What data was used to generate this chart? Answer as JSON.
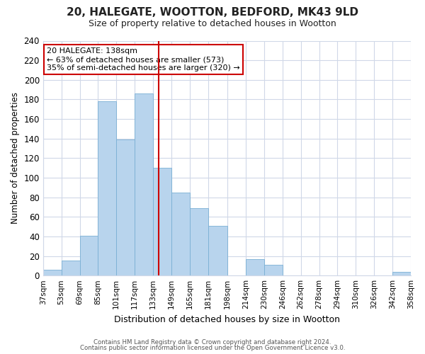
{
  "title": "20, HALEGATE, WOOTTON, BEDFORD, MK43 9LD",
  "subtitle": "Size of property relative to detached houses in Wootton",
  "xlabel": "Distribution of detached houses by size in Wootton",
  "ylabel": "Number of detached properties",
  "bar_edges": [
    37,
    53,
    69,
    85,
    101,
    117,
    133,
    149,
    165,
    181,
    198,
    214,
    230,
    246,
    262,
    278,
    294,
    310,
    326,
    342,
    358
  ],
  "bar_heights": [
    6,
    15,
    41,
    178,
    139,
    186,
    110,
    85,
    69,
    51,
    0,
    17,
    11,
    0,
    0,
    0,
    0,
    0,
    0,
    4
  ],
  "bar_color": "#b8d4ed",
  "bar_edgecolor": "#7aafd4",
  "vline_x": 138,
  "vline_color": "#cc0000",
  "ylim": [
    0,
    240
  ],
  "yticks": [
    0,
    20,
    40,
    60,
    80,
    100,
    120,
    140,
    160,
    180,
    200,
    220,
    240
  ],
  "xtick_labels": [
    "37sqm",
    "53sqm",
    "69sqm",
    "85sqm",
    "101sqm",
    "117sqm",
    "133sqm",
    "149sqm",
    "165sqm",
    "181sqm",
    "198sqm",
    "214sqm",
    "230sqm",
    "246sqm",
    "262sqm",
    "278sqm",
    "294sqm",
    "310sqm",
    "326sqm",
    "342sqm",
    "358sqm"
  ],
  "annotation_title": "20 HALEGATE: 138sqm",
  "annotation_line1": "← 63% of detached houses are smaller (573)",
  "annotation_line2": "35% of semi-detached houses are larger (320) →",
  "annotation_box_color": "#ffffff",
  "annotation_box_edgecolor": "#cc0000",
  "footer_line1": "Contains HM Land Registry data © Crown copyright and database right 2024.",
  "footer_line2": "Contains public sector information licensed under the Open Government Licence v3.0.",
  "background_color": "#ffffff",
  "grid_color": "#d0d8e8"
}
